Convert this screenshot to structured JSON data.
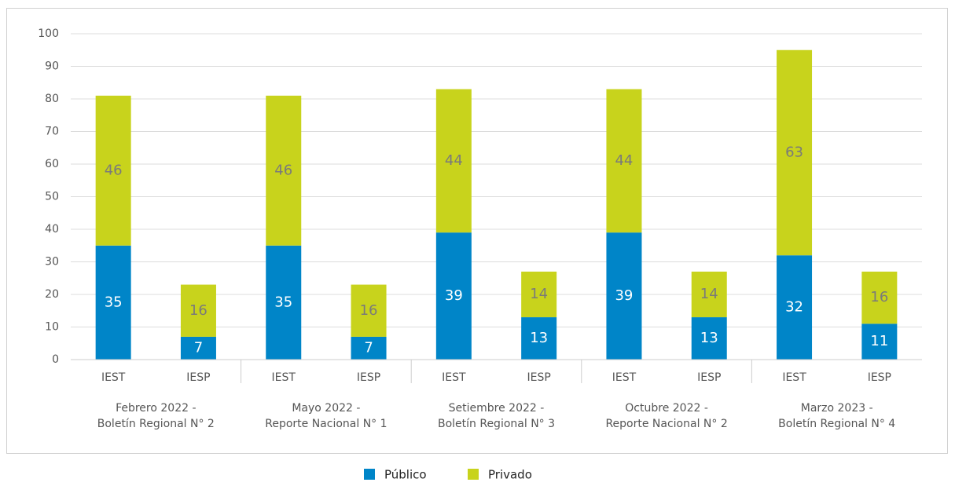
{
  "chart_data": {
    "type": "stacked_bar",
    "categories": [
      "IEST",
      "IESP",
      "IEST",
      "IESP",
      "IEST",
      "IESP",
      "IEST",
      "IESP",
      "IEST",
      "IESP"
    ],
    "groups": [
      {
        "lines": [
          "Febrero 2022 -",
          "Boletín Regional N° 2"
        ]
      },
      {
        "lines": [
          "Mayo 2022 -",
          "Reporte Nacional N° 1"
        ]
      },
      {
        "lines": [
          "Setiembre 2022 -",
          "Boletín Regional N° 3"
        ]
      },
      {
        "lines": [
          "Octubre 2022 -",
          "Reporte Nacional N° 2"
        ]
      },
      {
        "lines": [
          "Marzo 2023 -",
          "Boletín Regional N° 4"
        ]
      }
    ],
    "series": [
      {
        "name": "Público",
        "color": "#0085c8",
        "values": [
          35,
          7,
          35,
          7,
          39,
          13,
          39,
          13,
          32,
          11
        ]
      },
      {
        "name": "Privado",
        "color": "#c8d31c",
        "values": [
          46,
          16,
          46,
          16,
          44,
          14,
          44,
          14,
          63,
          16
        ]
      }
    ],
    "ylim": [
      0,
      100
    ],
    "yticks": [
      0,
      10,
      20,
      30,
      40,
      50,
      60,
      70,
      80,
      90,
      100
    ],
    "grid": true,
    "legend": "bottom"
  }
}
